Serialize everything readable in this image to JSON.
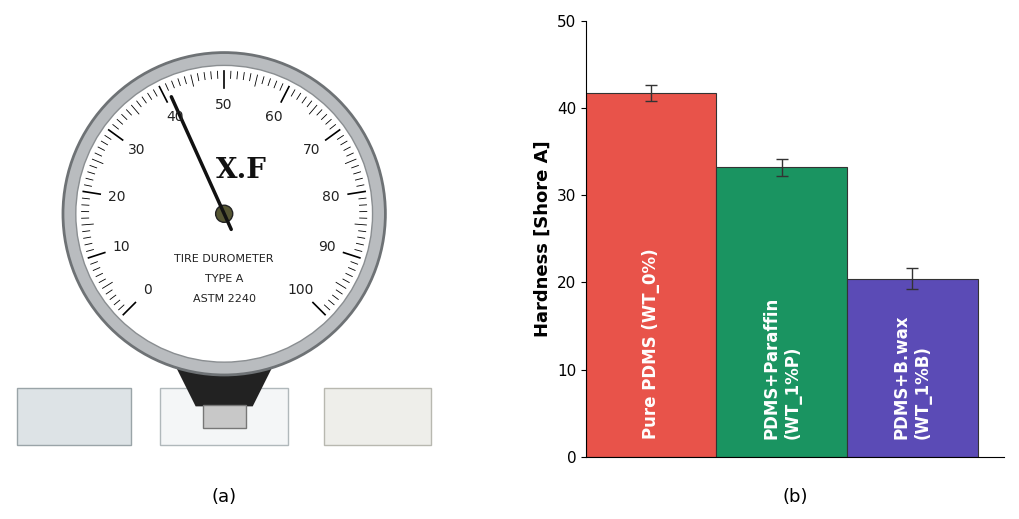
{
  "photo": {
    "panel_label": "(a)",
    "dial_ticks": [
      0,
      10,
      20,
      30,
      40,
      50,
      60,
      70,
      80,
      90,
      100
    ],
    "brand": "X.F",
    "lines": [
      "TIRE DUROMETER",
      "TYPE A",
      "ASTM 2240"
    ],
    "reading": 41
  },
  "chart_data": {
    "type": "bar",
    "panel_label": "(b)",
    "ylabel": "Hardness [Shore A]",
    "categories": [
      "Pure PDMS (WT_0%)",
      "PDMS+Paraffin\n(WT_1%P)",
      "PDMS+B.wax\n(WT_1%B)"
    ],
    "values": [
      41.7,
      33.2,
      20.4
    ],
    "errors": [
      0.9,
      1.0,
      1.2
    ],
    "colors": [
      "#e8534a",
      "#1a9461",
      "#5b4bb6"
    ],
    "ylim": [
      0,
      50
    ],
    "yticks": [
      0,
      10,
      20,
      30,
      40,
      50
    ],
    "tick_labels": "y"
  }
}
